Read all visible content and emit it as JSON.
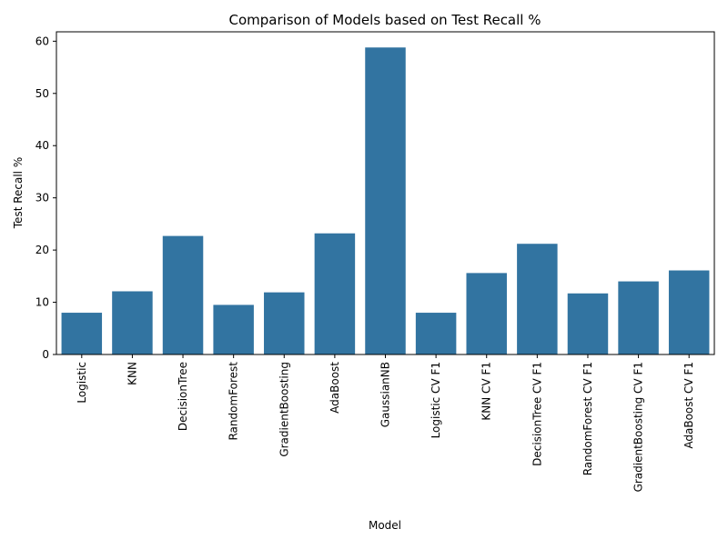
{
  "chart_data": {
    "type": "bar",
    "title": "Comparison of Models based on Test Recall %",
    "xlabel": "Model",
    "ylabel": "Test Recall %",
    "categories": [
      "Logistic",
      "KNN",
      "DecisionTree",
      "RandomForest",
      "GradientBoosting",
      "AdaBoost",
      "GaussianNB",
      "Logistic CV F1",
      "KNN CV F1",
      "DecisionTree CV F1",
      "RandomForest CV F1",
      "GradientBoosting CV F1",
      "AdaBoost CV F1"
    ],
    "values": [
      8.0,
      12.1,
      22.7,
      9.5,
      11.9,
      23.2,
      58.8,
      8.0,
      15.6,
      21.2,
      11.7,
      14.0,
      16.1
    ],
    "ylim": [
      0,
      61.8
    ],
    "yticks": [
      0,
      10,
      20,
      30,
      40,
      50,
      60
    ],
    "bar_color": "#3274a1",
    "grid": false,
    "legend": "none"
  }
}
